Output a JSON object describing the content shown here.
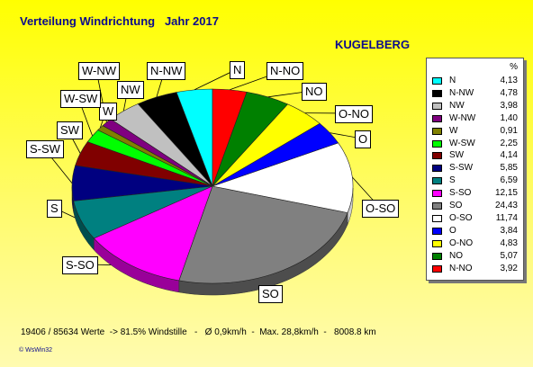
{
  "header": {
    "title": "Verteilung Windrichtung   Jahr 2017",
    "station": "KUGELBERG"
  },
  "legend": {
    "unit": "%"
  },
  "footer": {
    "stats": "19406 / 85634 Werte  -> 81.5% Windstille   -   Ø 0,9km/h  -  Max. 28,8km/h  -   8008.8 km",
    "logo": "© WsWin32"
  },
  "chart_data": {
    "type": "pie",
    "unit": "%",
    "slices": [
      {
        "label": "N",
        "value": 4.13,
        "color": "#00ffff"
      },
      {
        "label": "N-NW",
        "value": 4.78,
        "color": "#000000"
      },
      {
        "label": "NW",
        "value": 3.98,
        "color": "#c0c0c0"
      },
      {
        "label": "W-NW",
        "value": 1.4,
        "color": "#800080"
      },
      {
        "label": "W",
        "value": 0.91,
        "color": "#808000"
      },
      {
        "label": "W-SW",
        "value": 2.25,
        "color": "#00ff00"
      },
      {
        "label": "SW",
        "value": 4.14,
        "color": "#800000"
      },
      {
        "label": "S-SW",
        "value": 5.85,
        "color": "#000080"
      },
      {
        "label": "S",
        "value": 6.59,
        "color": "#008080"
      },
      {
        "label": "S-SO",
        "value": 12.15,
        "color": "#ff00ff"
      },
      {
        "label": "SO",
        "value": 24.43,
        "color": "#808080"
      },
      {
        "label": "O-SO",
        "value": 11.74,
        "color": "#ffffff"
      },
      {
        "label": "O",
        "value": 3.84,
        "color": "#0000ff"
      },
      {
        "label": "O-NO",
        "value": 4.83,
        "color": "#ffff00"
      },
      {
        "label": "NO",
        "value": 5.07,
        "color": "#008000"
      },
      {
        "label": "N-NO",
        "value": 3.92,
        "color": "#ff0000"
      }
    ],
    "value_strings": [
      "4,13",
      "4,78",
      "3,98",
      "1,40",
      "0,91",
      "2,25",
      "4,14",
      "5,85",
      "6,59",
      "12,15",
      "24,43",
      "11,74",
      "3,84",
      "4,83",
      "5,07",
      "3,92"
    ]
  }
}
